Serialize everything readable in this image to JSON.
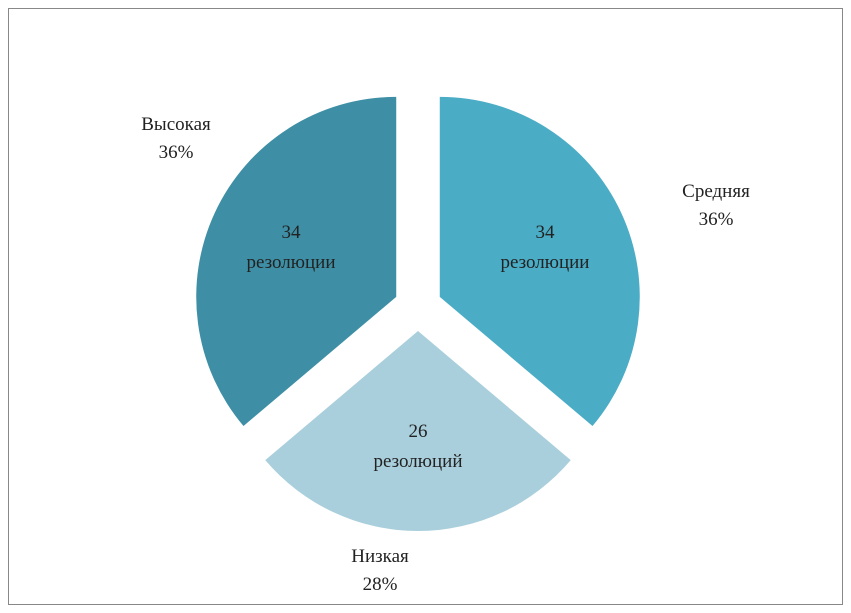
{
  "chart_data": {
    "type": "pie",
    "categories": [
      "Средняя",
      "Низкая",
      "Высокая"
    ],
    "values": [
      34,
      26,
      34
    ],
    "value_labels": [
      "34 резолюции",
      "26 резолюций",
      "34 резолюции"
    ],
    "percent_labels": [
      "36%",
      "28%",
      "36%"
    ],
    "colors": [
      "#4bacc6",
      "#a9cfdc",
      "#3e8fa5"
    ],
    "exploded": true
  }
}
